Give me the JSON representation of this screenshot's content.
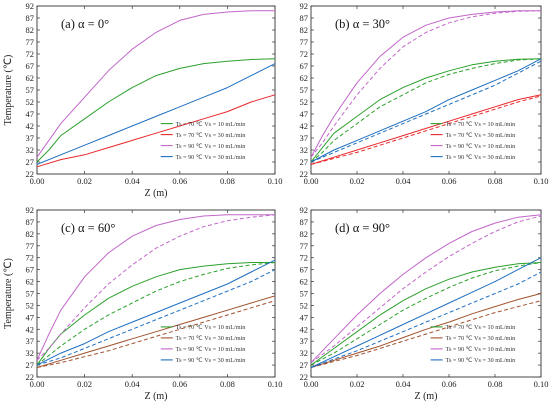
{
  "figure": {
    "background": "#ffffff"
  },
  "chart_data": [
    {
      "type": "line",
      "title": "(a) α = 0°",
      "xlabel": "Z (m)",
      "ylabel": "Temperature (℃)",
      "xlim": [
        0,
        0.1
      ],
      "ylim": [
        22,
        92
      ],
      "xticks": [
        "0.00",
        "0.02",
        "0.04",
        "0.06",
        "0.08",
        "0.10"
      ],
      "yticks": [
        "22",
        "27",
        "32",
        "37",
        "42",
        "47",
        "52",
        "57",
        "62",
        "67",
        "72",
        "77",
        "82",
        "87",
        "92"
      ],
      "legend_position": "bottom-right",
      "series": [
        {
          "name": "Ts = 70 ℃  Vs = 10 mL/min",
          "color": "#2ca02c",
          "style": "solid",
          "x": [
            0,
            0.005,
            0.01,
            0.02,
            0.03,
            0.04,
            0.05,
            0.06,
            0.07,
            0.08,
            0.09,
            0.1
          ],
          "y": [
            27,
            32,
            38,
            45,
            52,
            58,
            63,
            66,
            68,
            69,
            69.7,
            70
          ]
        },
        {
          "name": "Ts = 70 ℃  Vs = 30 mL/min",
          "color": "#e8282b",
          "style": "solid",
          "x": [
            0,
            0.01,
            0.02,
            0.03,
            0.04,
            0.05,
            0.06,
            0.07,
            0.08,
            0.09,
            0.1
          ],
          "y": [
            25,
            28,
            30,
            33,
            36,
            39,
            42,
            45,
            48,
            52,
            55
          ]
        },
        {
          "name": "Ts = 90 ℃  Vs = 10 mL/min",
          "color": "#c266c9",
          "style": "solid",
          "x": [
            0,
            0.005,
            0.01,
            0.02,
            0.03,
            0.04,
            0.05,
            0.06,
            0.07,
            0.08,
            0.09,
            0.1
          ],
          "y": [
            29,
            36,
            43,
            54,
            65,
            74,
            81,
            86,
            88.5,
            89.5,
            90,
            90
          ]
        },
        {
          "name": "Ts = 90 ℃  Vs = 30 mL/min",
          "color": "#1f6fc0",
          "style": "solid",
          "x": [
            0,
            0.01,
            0.02,
            0.03,
            0.04,
            0.05,
            0.06,
            0.07,
            0.08,
            0.09,
            0.1
          ],
          "y": [
            26,
            30,
            34,
            38,
            42,
            46,
            50,
            54,
            58,
            63,
            68
          ]
        }
      ]
    },
    {
      "type": "line",
      "title": "(b) α = 30°",
      "xlabel": "",
      "ylabel": "",
      "xlim": [
        0,
        0.1
      ],
      "ylim": [
        22,
        92
      ],
      "xticks": [
        "0.00",
        "0.02",
        "0.04",
        "0.06",
        "0.08",
        "0.10"
      ],
      "yticks": [
        "22",
        "27",
        "32",
        "37",
        "42",
        "47",
        "52",
        "57",
        "62",
        "67",
        "72",
        "77",
        "82",
        "87",
        "92"
      ],
      "legend_position": "bottom-right",
      "series": [
        {
          "name": "Ts = 70 ℃  Vs = 10 mL/min",
          "color": "#2ca02c",
          "style": "solid",
          "x": [
            0,
            0.005,
            0.01,
            0.02,
            0.03,
            0.04,
            0.05,
            0.06,
            0.07,
            0.08,
            0.09,
            0.1
          ],
          "y": [
            27,
            33,
            39,
            46,
            53,
            58,
            62,
            65,
            67.5,
            69,
            69.8,
            70
          ]
        },
        {
          "name": "",
          "color": "#2ca02c",
          "style": "dashed",
          "x": [
            0,
            0.005,
            0.01,
            0.02,
            0.03,
            0.04,
            0.05,
            0.06,
            0.07,
            0.08,
            0.09,
            0.1
          ],
          "y": [
            27,
            31,
            36,
            43,
            50,
            55,
            60,
            63.5,
            66,
            68,
            69.5,
            70
          ]
        },
        {
          "name": "Ts = 70 ℃  Vs = 30 mL/min",
          "color": "#e8282b",
          "style": "solid",
          "x": [
            0,
            0.01,
            0.02,
            0.03,
            0.04,
            0.05,
            0.06,
            0.07,
            0.08,
            0.09,
            0.1
          ],
          "y": [
            26,
            29,
            32,
            35,
            38,
            41,
            44,
            47,
            50,
            53,
            55
          ]
        },
        {
          "name": "",
          "color": "#e8282b",
          "style": "dashed",
          "x": [
            0,
            0.01,
            0.02,
            0.03,
            0.04,
            0.05,
            0.06,
            0.07,
            0.08,
            0.09,
            0.1
          ],
          "y": [
            26,
            28.5,
            31,
            34,
            37,
            40,
            43,
            46,
            49,
            52,
            54.5
          ]
        },
        {
          "name": "Ts = 90 ℃  Vs = 10 mL/min",
          "color": "#c266c9",
          "style": "solid",
          "x": [
            0,
            0.005,
            0.01,
            0.02,
            0.03,
            0.04,
            0.05,
            0.06,
            0.07,
            0.08,
            0.09,
            0.1
          ],
          "y": [
            29,
            38,
            46,
            60,
            71,
            79,
            84,
            87,
            88.5,
            89.5,
            90,
            90
          ]
        },
        {
          "name": "",
          "color": "#c266c9",
          "style": "dashed",
          "x": [
            0,
            0.005,
            0.01,
            0.02,
            0.03,
            0.04,
            0.05,
            0.06,
            0.07,
            0.08,
            0.09,
            0.1
          ],
          "y": [
            29,
            35,
            42,
            55,
            66,
            75,
            81,
            85,
            87.5,
            89,
            89.8,
            90
          ]
        },
        {
          "name": "Ts = 90 ℃  Vs = 30 mL/min",
          "color": "#1f6fc0",
          "style": "solid",
          "x": [
            0,
            0.01,
            0.02,
            0.03,
            0.04,
            0.05,
            0.06,
            0.07,
            0.08,
            0.09,
            0.1
          ],
          "y": [
            27,
            32,
            36,
            40,
            44,
            48,
            53,
            57,
            61,
            65,
            70
          ]
        },
        {
          "name": "",
          "color": "#1f6fc0",
          "style": "dashed",
          "x": [
            0,
            0.01,
            0.02,
            0.03,
            0.04,
            0.05,
            0.06,
            0.07,
            0.08,
            0.09,
            0.1
          ],
          "y": [
            27,
            31,
            35,
            39,
            43,
            47,
            51,
            55,
            59,
            64,
            69
          ]
        }
      ]
    },
    {
      "type": "line",
      "title": "(c) α = 60°",
      "xlabel": "Z (m)",
      "ylabel": "Temperature (℃)",
      "xlim": [
        0,
        0.1
      ],
      "ylim": [
        22,
        92
      ],
      "xticks": [
        "0.00",
        "0.02",
        "0.04",
        "0.06",
        "0.08",
        "0.10"
      ],
      "yticks": [
        "22",
        "27",
        "32",
        "37",
        "42",
        "47",
        "52",
        "57",
        "62",
        "67",
        "72",
        "77",
        "82",
        "87",
        "92"
      ],
      "legend_position": "bottom-right",
      "series": [
        {
          "name": "Ts = 70 ℃  Vs = 10 mL/min",
          "color": "#2ca02c",
          "style": "solid",
          "x": [
            0,
            0.005,
            0.01,
            0.02,
            0.03,
            0.04,
            0.05,
            0.06,
            0.07,
            0.08,
            0.09,
            0.1
          ],
          "y": [
            27,
            34,
            40,
            48,
            55,
            60,
            64,
            67,
            68.5,
            69.5,
            70,
            70
          ]
        },
        {
          "name": "",
          "color": "#2ca02c",
          "style": "dashed",
          "x": [
            0,
            0.005,
            0.01,
            0.02,
            0.03,
            0.04,
            0.05,
            0.06,
            0.07,
            0.08,
            0.09,
            0.1
          ],
          "y": [
            27,
            31,
            35,
            42,
            48,
            53,
            58,
            62,
            65,
            67.5,
            69,
            70
          ]
        },
        {
          "name": "Ts = 70 ℃  Vs = 30 mL/min",
          "color": "#a0522d",
          "style": "solid",
          "x": [
            0,
            0.01,
            0.02,
            0.03,
            0.04,
            0.05,
            0.06,
            0.07,
            0.08,
            0.09,
            0.1
          ],
          "y": [
            26,
            29,
            32,
            35,
            38,
            41,
            44,
            47,
            50,
            53,
            56
          ]
        },
        {
          "name": "",
          "color": "#a0522d",
          "style": "dashed",
          "x": [
            0,
            0.01,
            0.02,
            0.03,
            0.04,
            0.05,
            0.06,
            0.07,
            0.08,
            0.09,
            0.1
          ],
          "y": [
            26,
            28,
            30.5,
            33,
            36,
            39,
            42,
            45,
            48,
            51,
            54
          ]
        },
        {
          "name": "Ts = 90 ℃  Vs = 10 mL/min",
          "color": "#c266c9",
          "style": "solid",
          "x": [
            0,
            0.005,
            0.01,
            0.02,
            0.03,
            0.04,
            0.05,
            0.06,
            0.07,
            0.08,
            0.09,
            0.1
          ],
          "y": [
            29,
            40,
            50,
            64,
            74,
            81,
            85.5,
            88,
            89.5,
            90,
            90,
            90
          ]
        },
        {
          "name": "",
          "color": "#c266c9",
          "style": "dashed",
          "x": [
            0,
            0.005,
            0.01,
            0.02,
            0.03,
            0.04,
            0.05,
            0.06,
            0.07,
            0.08,
            0.09,
            0.1
          ],
          "y": [
            29,
            34,
            40,
            51,
            61,
            69,
            76,
            81,
            85,
            87.5,
            89,
            90
          ]
        },
        {
          "name": "Ts = 90 ℃  Vs = 30 mL/min",
          "color": "#1f6fc0",
          "style": "solid",
          "x": [
            0,
            0.01,
            0.02,
            0.03,
            0.04,
            0.05,
            0.06,
            0.07,
            0.08,
            0.09,
            0.1
          ],
          "y": [
            27,
            32,
            36,
            41,
            45,
            49,
            53,
            57,
            61,
            66,
            71
          ]
        },
        {
          "name": "",
          "color": "#1f6fc0",
          "style": "dashed",
          "x": [
            0,
            0.01,
            0.02,
            0.03,
            0.04,
            0.05,
            0.06,
            0.07,
            0.08,
            0.09,
            0.1
          ],
          "y": [
            27,
            30,
            34,
            38,
            42,
            46,
            50,
            54,
            58,
            62,
            67
          ]
        }
      ]
    },
    {
      "type": "line",
      "title": "(d) α = 90°",
      "xlabel": "Z (m)",
      "ylabel": "",
      "xlim": [
        0,
        0.1
      ],
      "ylim": [
        22,
        92
      ],
      "xticks": [
        "0.00",
        "0.02",
        "0.04",
        "0.06",
        "0.08",
        "0.10"
      ],
      "yticks": [
        "22",
        "27",
        "32",
        "37",
        "42",
        "47",
        "52",
        "57",
        "62",
        "67",
        "72",
        "77",
        "82",
        "87",
        "92"
      ],
      "legend_position": "bottom-right",
      "series": [
        {
          "name": "Ts = 70 ℃  Vs = 10 mL/min",
          "color": "#2ca02c",
          "style": "solid",
          "x": [
            0,
            0.01,
            0.02,
            0.03,
            0.04,
            0.05,
            0.06,
            0.07,
            0.08,
            0.09,
            0.1
          ],
          "y": [
            27,
            34,
            41,
            48,
            54,
            59,
            63,
            66,
            68,
            69.5,
            70
          ]
        },
        {
          "name": "",
          "color": "#2ca02c",
          "style": "dashed",
          "x": [
            0,
            0.01,
            0.02,
            0.03,
            0.04,
            0.05,
            0.06,
            0.07,
            0.08,
            0.09,
            0.1
          ],
          "y": [
            27,
            32,
            38,
            44,
            50,
            55,
            59.5,
            63.5,
            66.5,
            68.5,
            70
          ]
        },
        {
          "name": "Ts = 70 ℃  Vs = 30 mL/min",
          "color": "#a0522d",
          "style": "solid",
          "x": [
            0,
            0.01,
            0.02,
            0.03,
            0.04,
            0.05,
            0.06,
            0.07,
            0.08,
            0.09,
            0.1
          ],
          "y": [
            26,
            29,
            32,
            35,
            38.5,
            42,
            45,
            48.5,
            51.5,
            54.5,
            57
          ]
        },
        {
          "name": "",
          "color": "#a0522d",
          "style": "dashed",
          "x": [
            0,
            0.01,
            0.02,
            0.03,
            0.04,
            0.05,
            0.06,
            0.07,
            0.08,
            0.09,
            0.1
          ],
          "y": [
            26,
            28.5,
            31,
            34,
            37,
            40,
            43,
            46,
            49,
            51.5,
            54
          ]
        },
        {
          "name": "Ts = 90 ℃  Vs = 10 mL/min",
          "color": "#c266c9",
          "style": "solid",
          "x": [
            0,
            0.01,
            0.02,
            0.03,
            0.04,
            0.05,
            0.06,
            0.07,
            0.08,
            0.09,
            0.1
          ],
          "y": [
            28,
            38,
            48,
            57,
            65,
            72,
            78,
            83,
            86.5,
            89,
            90
          ]
        },
        {
          "name": "",
          "color": "#c266c9",
          "style": "dashed",
          "x": [
            0,
            0.01,
            0.02,
            0.03,
            0.04,
            0.05,
            0.06,
            0.07,
            0.08,
            0.09,
            0.1
          ],
          "y": [
            28,
            35,
            43,
            51,
            59,
            66,
            72.5,
            78,
            83,
            87,
            89.5
          ]
        },
        {
          "name": "Ts = 90 ℃  Vs = 30 mL/min",
          "color": "#1f6fc0",
          "style": "solid",
          "x": [
            0,
            0.01,
            0.02,
            0.03,
            0.04,
            0.05,
            0.06,
            0.07,
            0.08,
            0.09,
            0.1
          ],
          "y": [
            26,
            30.5,
            35,
            39.5,
            44,
            48.5,
            53,
            57.5,
            62,
            67,
            72
          ]
        },
        {
          "name": "",
          "color": "#1f6fc0",
          "style": "dashed",
          "x": [
            0,
            0.01,
            0.02,
            0.03,
            0.04,
            0.05,
            0.06,
            0.07,
            0.08,
            0.09,
            0.1
          ],
          "y": [
            26,
            29.5,
            33,
            37,
            41,
            45,
            49,
            53,
            57,
            61,
            66
          ]
        }
      ]
    }
  ]
}
